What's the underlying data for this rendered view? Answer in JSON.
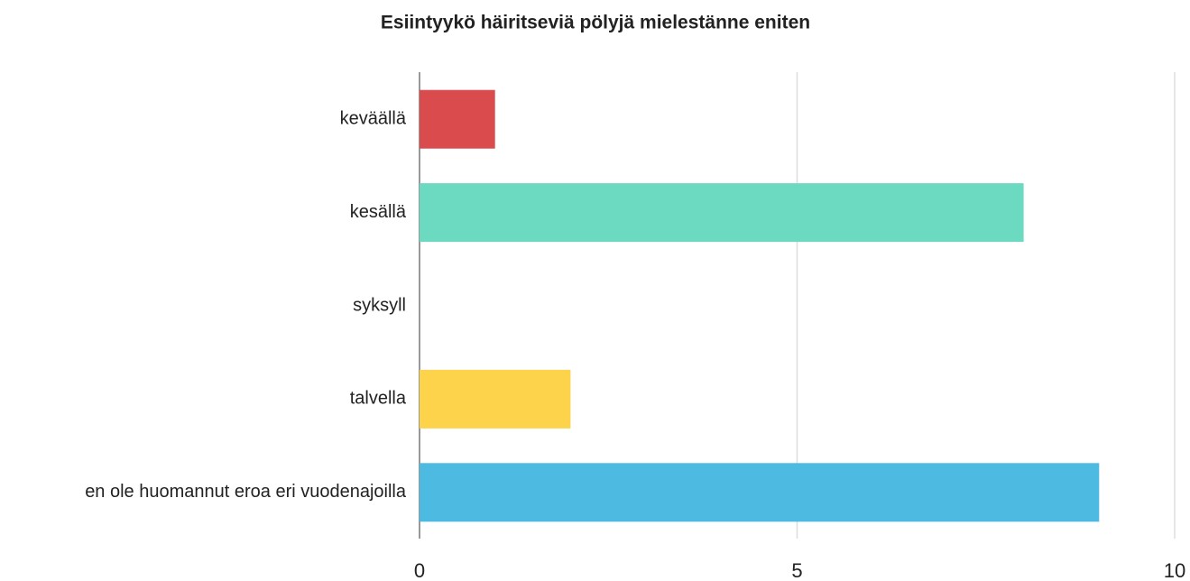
{
  "chart_data": {
    "type": "hbar",
    "title": "Esiintyykö häiritseviä pölyjä mielestänne eniten",
    "categories": [
      "keväällä",
      "kesällä",
      "syksyll",
      "talvella",
      "en ole huomannut eroa eri vuodenajoilla"
    ],
    "values": [
      1,
      8,
      0,
      2,
      9
    ],
    "colors": [
      "#d94b4d",
      "#6cd9c1",
      null,
      "#fdd34b",
      "#4dbae2"
    ],
    "xlim": [
      0,
      10
    ],
    "xticks": [
      0,
      5,
      10
    ],
    "grid": true
  }
}
